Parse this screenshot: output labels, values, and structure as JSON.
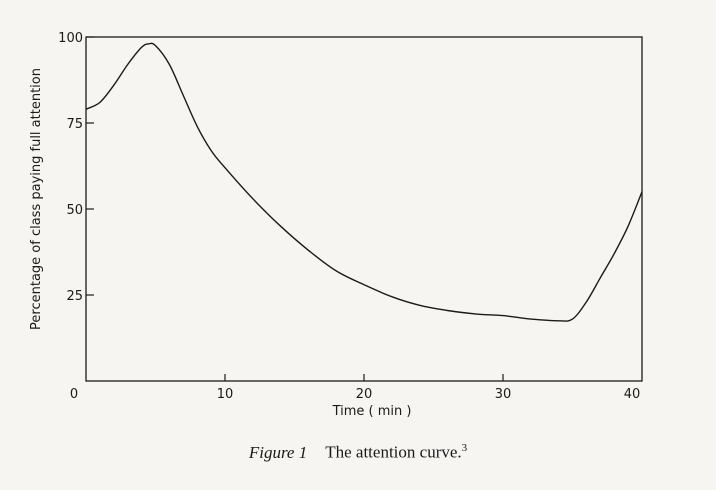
{
  "chart_data": {
    "type": "line",
    "xlabel": "Time ( min )",
    "ylabel": "Percentage of class paying full attention",
    "xlim": [
      0,
      40
    ],
    "ylim": [
      0,
      100
    ],
    "xticks": [
      "0",
      "10",
      "20",
      "30",
      "40"
    ],
    "yticks": [
      "25",
      "50",
      "75",
      "100"
    ],
    "grid": false,
    "series": [
      {
        "x": [
          0,
          1,
          2,
          3,
          4,
          4.5,
          5,
          6,
          7,
          8,
          9,
          10,
          12,
          14,
          16,
          18,
          20,
          22,
          24,
          26,
          28,
          30,
          32,
          34,
          35,
          36,
          37,
          38,
          39,
          40
        ],
        "y": [
          79,
          81,
          86,
          92,
          97,
          98,
          97.5,
          92,
          83,
          74,
          67,
          62,
          53,
          45,
          38,
          32,
          28,
          24.5,
          22,
          20.5,
          19.5,
          19,
          18,
          17.5,
          18,
          23,
          30,
          37,
          45,
          55
        ]
      }
    ]
  },
  "caption": {
    "label": "Figure 1",
    "text": "The attention curve.",
    "ref": "3"
  }
}
